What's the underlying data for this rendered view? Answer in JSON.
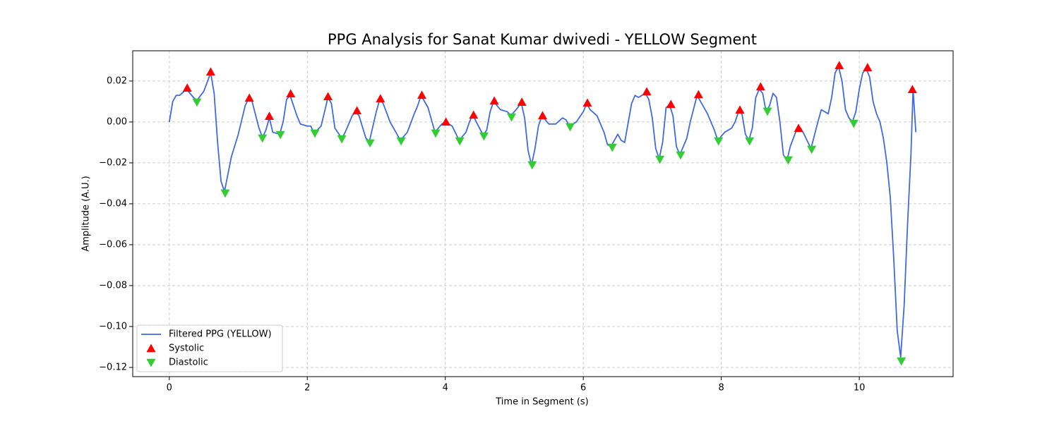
{
  "chart_data": {
    "type": "line",
    "title": "PPG Analysis for Sanat Kumar dwivedi - YELLOW Segment",
    "x_label": "Time in Segment (s)",
    "y_label": "Amplitude (A.U.)",
    "xlim": [
      -0.53,
      11.36
    ],
    "ylim": [
      -0.1245,
      0.0348
    ],
    "xticks": [
      0,
      2,
      4,
      6,
      8,
      10
    ],
    "yticks": [
      {
        "value": -0.12,
        "label": "−0.12"
      },
      {
        "value": -0.1,
        "label": "−0.10"
      },
      {
        "value": -0.08,
        "label": "−0.08"
      },
      {
        "value": -0.06,
        "label": "−0.06"
      },
      {
        "value": -0.04,
        "label": "−0.04"
      },
      {
        "value": -0.02,
        "label": "−0.02"
      },
      {
        "value": 0,
        "label": "0.00"
      },
      {
        "value": 0.02,
        "label": "0.02"
      }
    ],
    "grid": true,
    "legend": "lower left",
    "series": [
      {
        "name": "Filtered PPG (YELLOW)",
        "color": "#4169e1",
        "marker": "line",
        "x": [
          0,
          0.05,
          0.1,
          0.15,
          0.25,
          0.35,
          0.4,
          0.5,
          0.6,
          0.65,
          0.7,
          0.75,
          0.8,
          0.9,
          1.0,
          1.1,
          1.15,
          1.2,
          1.3,
          1.35,
          1.4,
          1.45,
          1.5,
          1.6,
          1.65,
          1.7,
          1.75,
          1.85,
          1.9,
          2.0,
          2.05,
          2.1,
          2.2,
          2.25,
          2.3,
          2.35,
          2.4,
          2.5,
          2.55,
          2.65,
          2.7,
          2.75,
          2.85,
          2.9,
          3.0,
          3.05,
          3.1,
          3.2,
          3.3,
          3.35,
          3.45,
          3.55,
          3.6,
          3.65,
          3.75,
          3.85,
          3.95,
          4.0,
          4.1,
          4.2,
          4.3,
          4.35,
          4.4,
          4.45,
          4.55,
          4.6,
          4.65,
          4.7,
          4.8,
          4.9,
          4.95,
          5.05,
          5.1,
          5.15,
          5.2,
          5.25,
          5.3,
          5.35,
          5.4,
          5.5,
          5.6,
          5.7,
          5.75,
          5.8,
          5.9,
          6.0,
          6.05,
          6.1,
          6.2,
          6.3,
          6.35,
          6.4,
          6.45,
          6.5,
          6.55,
          6.6,
          6.7,
          6.75,
          6.8,
          6.9,
          6.95,
          7.0,
          7.05,
          7.1,
          7.15,
          7.2,
          7.25,
          7.3,
          7.35,
          7.4,
          7.5,
          7.55,
          7.65,
          7.7,
          7.8,
          7.9,
          7.95,
          8.05,
          8.15,
          8.2,
          8.25,
          8.3,
          8.35,
          8.4,
          8.45,
          8.5,
          8.55,
          8.6,
          8.65,
          8.7,
          8.75,
          8.8,
          8.85,
          8.9,
          8.95,
          9.0,
          9.1,
          9.15,
          9.2,
          9.3,
          9.4,
          9.45,
          9.5,
          9.55,
          9.6,
          9.65,
          9.7,
          9.75,
          9.8,
          9.85,
          9.9,
          9.95,
          10.0,
          10.05,
          10.1,
          10.15,
          10.2,
          10.25,
          10.3,
          10.35,
          10.4,
          10.45,
          10.5,
          10.55,
          10.6,
          10.65,
          10.7,
          10.75,
          10.78,
          10.82
        ],
        "values": [
          0,
          0.01,
          0.013,
          0.013,
          0.016,
          0.012,
          0.0105,
          0.015,
          0.024,
          0.014,
          -0.01,
          -0.029,
          -0.034,
          -0.017,
          -0.006,
          0.008,
          0.0115,
          0.01,
          -0.003,
          -0.0075,
          -0.004,
          0.002,
          -0.005,
          -0.006,
          0.0,
          0.011,
          0.013,
          0.003,
          -0.001,
          -0.002,
          -0.002,
          -0.0055,
          -0.002,
          0.005,
          0.012,
          0.009,
          -0.003,
          -0.008,
          -0.005,
          0.003,
          0.005,
          0.003,
          -0.008,
          -0.0095,
          0.005,
          0.011,
          0.009,
          0.0,
          -0.006,
          -0.009,
          -0.005,
          0.004,
          0.008,
          0.013,
          0.007,
          -0.005,
          -0.001,
          0.0,
          -0.002,
          -0.009,
          -0.005,
          0.0,
          0.0035,
          0.0,
          -0.0065,
          -0.004,
          0.005,
          0.01,
          0.006,
          0.005,
          0.003,
          0.007,
          0.0095,
          0.002,
          -0.014,
          -0.021,
          -0.013,
          -0.002,
          0.003,
          -0.001,
          -0.001,
          0.002,
          0.001,
          -0.002,
          0.0,
          0.005,
          0.009,
          0.006,
          0.003,
          -0.005,
          -0.011,
          -0.012,
          -0.009,
          -0.006,
          -0.009,
          -0.01,
          0.009,
          0.013,
          0.012,
          0.014,
          0.011,
          0.002,
          -0.013,
          -0.018,
          -0.01,
          0.007,
          0.0085,
          0.003,
          -0.012,
          -0.016,
          -0.008,
          0.0,
          0.013,
          0.01,
          0.004,
          -0.004,
          -0.009,
          -0.005,
          -0.003,
          0.0,
          0.005,
          0.004,
          -0.006,
          -0.009,
          -0.003,
          0.012,
          0.016,
          0.014,
          0.005,
          0.008,
          0.014,
          0.012,
          0.0,
          -0.016,
          -0.019,
          -0.012,
          -0.003,
          -0.003,
          -0.006,
          -0.013,
          0.0,
          0.006,
          0.005,
          0.004,
          0.012,
          0.024,
          0.027,
          0.02,
          0.006,
          0.002,
          0.0,
          0.005,
          0.016,
          0.024,
          0.026,
          0.022,
          0.01,
          0.004,
          0.0,
          -0.008,
          -0.02,
          -0.037,
          -0.067,
          -0.102,
          -0.115,
          -0.09,
          -0.05,
          -0.015,
          0.016,
          -0.005
        ]
      },
      {
        "name": "Systolic",
        "color": "#ff0000",
        "marker": "up",
        "x": [
          0.26,
          0.6,
          1.16,
          1.45,
          1.76,
          2.3,
          2.72,
          3.06,
          3.66,
          4.01,
          4.41,
          4.71,
          5.11,
          5.41,
          6.06,
          6.92,
          7.27,
          7.67,
          8.27,
          8.57,
          9.12,
          9.71,
          10.12,
          10.77
        ],
        "values": [
          0.0166,
          0.0245,
          0.0117,
          0.0028,
          0.0138,
          0.0124,
          0.0055,
          0.0114,
          0.0131,
          0.0,
          0.0034,
          0.0103,
          0.0097,
          0.0031,
          0.0093,
          0.0148,
          0.0086,
          0.0134,
          0.0059,
          0.0172,
          -0.0031,
          0.0276,
          0.0266,
          0.0159
        ]
      },
      {
        "name": "Diastolic",
        "color": "#32cd32",
        "marker": "down",
        "x": [
          0.4,
          0.81,
          1.35,
          1.61,
          2.11,
          2.5,
          2.91,
          3.36,
          3.86,
          4.21,
          4.56,
          4.96,
          5.26,
          5.81,
          6.42,
          7.11,
          7.41,
          7.96,
          8.41,
          8.67,
          8.97,
          9.31,
          9.92,
          10.61
        ],
        "values": [
          0.0097,
          -0.0348,
          -0.0079,
          -0.0062,
          -0.0055,
          -0.0083,
          -0.0103,
          -0.0093,
          -0.0055,
          -0.0093,
          -0.0069,
          0.0024,
          -0.021,
          -0.0024,
          -0.0124,
          -0.0183,
          -0.0162,
          -0.0093,
          -0.0093,
          0.0052,
          -0.0186,
          -0.0134,
          -0.0007,
          -0.1169
        ]
      }
    ]
  }
}
